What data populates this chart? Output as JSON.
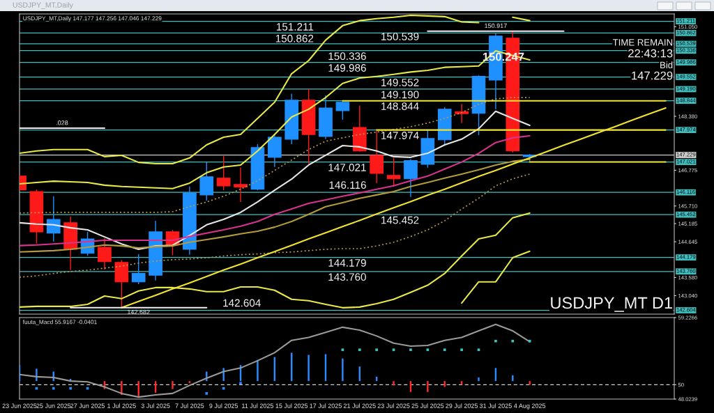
{
  "chart_data": [
    {
      "type": "candlestick",
      "title": "USDJPY_MT,Daily",
      "subtitle": "USDJPY_MT,Daily 147.177 147.256 147.046 147.229",
      "categories": [
        null,
        null,
        null,
        null,
        null,
        null,
        null,
        null,
        null,
        null,
        null,
        null,
        null,
        null,
        null,
        null,
        null,
        null,
        null,
        null,
        null,
        null,
        null,
        null,
        null,
        null,
        null,
        null,
        null,
        null,
        null,
        null,
        null,
        null,
        null,
        null,
        null,
        null,
        null
      ],
      "ohlc": [
        [
          146.6,
          146.6,
          146.19,
          146.19
        ],
        [
          146.14,
          146.2,
          144.59,
          144.94
        ],
        [
          144.9,
          146.0,
          144.65,
          145.31
        ],
        [
          145.21,
          145.4,
          143.8,
          144.42
        ],
        [
          144.3,
          144.94,
          144.23,
          144.73
        ],
        [
          144.48,
          144.75,
          143.82,
          144.05
        ],
        [
          144.03,
          144.1,
          142.682,
          143.45
        ],
        [
          143.45,
          144.28,
          143.38,
          143.7
        ],
        [
          143.65,
          145.27,
          143.49,
          144.94
        ],
        [
          144.94,
          145.0,
          144.24,
          144.55
        ],
        [
          144.42,
          146.29,
          144.26,
          146.1
        ],
        [
          146.04,
          147.01,
          145.87,
          146.58
        ],
        [
          146.54,
          147.2,
          146.18,
          146.31
        ],
        [
          146.35,
          146.85,
          145.83,
          146.27
        ],
        [
          146.21,
          147.55,
          146.18,
          147.45
        ],
        [
          147.16,
          147.84,
          146.87,
          147.76
        ],
        [
          147.7,
          149.05,
          147.55,
          148.86
        ],
        [
          148.86,
          149.19,
          146.97,
          147.84
        ],
        [
          147.78,
          149.01,
          147.7,
          148.63
        ],
        [
          148.55,
          148.82,
          148.28,
          148.8
        ],
        [
          148.05,
          148.7,
          147.33,
          147.35
        ],
        [
          147.22,
          147.95,
          146.39,
          146.68
        ],
        [
          146.62,
          147.14,
          146.29,
          146.52
        ],
        [
          146.52,
          147.1,
          145.98,
          147.06
        ],
        [
          146.95,
          147.97,
          146.85,
          147.72
        ],
        [
          147.68,
          148.65,
          147.53,
          148.59
        ],
        [
          148.52,
          148.75,
          148.18,
          148.46
        ],
        [
          148.47,
          149.6,
          147.82,
          149.57
        ],
        [
          149.46,
          150.87,
          148.59,
          150.77
        ],
        [
          150.71,
          150.917,
          147.3,
          147.35
        ],
        [
          147.177,
          147.256,
          147.046,
          147.229
        ],
        null,
        null,
        null,
        null,
        null,
        null,
        null,
        null
      ],
      "colors": [
        "#ff1a1a",
        "#ff1a1a",
        "#1e90ff",
        "#ff1a1a",
        "#1e90ff",
        "#ff1a1a",
        "#ff1a1a",
        "#1e90ff",
        "#1e90ff",
        "#ff1a1a",
        "#1e90ff",
        "#1e90ff",
        "#ff1a1a",
        "#ff1a1a",
        "#1e90ff",
        "#1e90ff",
        "#1e90ff",
        "#ff1a1a",
        "#1e90ff",
        "#1e90ff",
        "#ff1a1a",
        "#ff1a1a",
        "#ff1a1a",
        "#1e90ff",
        "#1e90ff",
        "#1e90ff",
        "#ff1a1a",
        "#1e90ff",
        "#1e90ff",
        "#ff1a1a",
        "#1e90ff",
        null,
        null,
        null,
        null,
        null,
        null,
        null,
        null
      ],
      "series": [
        {
          "type": "line",
          "color": "#e6e6e6",
          "values": [
            145.21,
            145.17,
            145.15,
            145.06,
            145.0,
            144.79,
            144.58,
            144.42,
            144.52,
            144.54,
            144.83,
            145.15,
            145.31,
            145.52,
            145.83,
            146.18,
            146.51,
            146.93,
            147.22,
            147.51,
            147.47,
            147.35,
            147.18,
            147.16,
            147.28,
            147.53,
            147.7,
            148.01,
            148.53,
            148.32,
            148.11,
            null,
            null,
            null,
            null,
            null,
            null,
            null,
            null
          ]
        },
        {
          "type": "line",
          "color": "#d9338f",
          "values": [
            144.53,
            144.55,
            144.58,
            144.61,
            144.65,
            144.69,
            144.69,
            144.69,
            144.69,
            144.69,
            144.8,
            144.9,
            145.0,
            145.11,
            145.25,
            145.46,
            145.62,
            145.79,
            145.89,
            146.0,
            146.1,
            146.21,
            146.31,
            146.46,
            146.6,
            146.81,
            147.02,
            147.28,
            147.6,
            147.74,
            147.8,
            null,
            null,
            null,
            null,
            null,
            null,
            null,
            null
          ]
        },
        {
          "type": "line",
          "color": "#b39b3c",
          "values": [
            144.34,
            144.36,
            144.38,
            144.42,
            144.48,
            144.55,
            144.52,
            144.46,
            144.5,
            144.52,
            144.63,
            144.71,
            144.79,
            144.88,
            144.96,
            145.08,
            145.25,
            145.46,
            145.69,
            145.81,
            145.94,
            146.04,
            146.14,
            146.29,
            146.41,
            146.54,
            146.66,
            146.79,
            146.93,
            147.04,
            147.1,
            null,
            null,
            null,
            null,
            null,
            null,
            null,
            null
          ]
        },
        {
          "type": "line",
          "color": "#b89a50",
          "line_style": "dotted",
          "values": [
            145.5,
            145.51,
            145.52,
            145.52,
            145.52,
            145.52,
            145.52,
            145.52,
            145.52,
            145.54,
            145.69,
            145.83,
            146.0,
            146.21,
            146.46,
            146.77,
            147.08,
            147.39,
            147.64,
            147.74,
            147.84,
            147.91,
            147.99,
            148.07,
            148.18,
            148.32,
            148.49,
            148.74,
            148.9,
            148.94,
            148.94,
            null,
            null,
            null,
            null,
            null,
            null,
            null,
            null
          ]
        },
        {
          "type": "line",
          "color": "#b89a50",
          "line_style": "dotted",
          "values": [
            143.59,
            143.63,
            143.7,
            143.76,
            143.8,
            143.86,
            143.92,
            144.01,
            144.07,
            144.11,
            144.13,
            144.17,
            144.22,
            144.26,
            144.28,
            144.32,
            144.34,
            144.38,
            144.42,
            144.44,
            144.44,
            144.52,
            144.63,
            144.8,
            145.0,
            145.27,
            145.62,
            145.94,
            146.31,
            146.52,
            146.66,
            null,
            null,
            null,
            null,
            null,
            null,
            null,
            null
          ]
        },
        {
          "type": "line",
          "color": "#e8e84a",
          "values": [
            147.28,
            147.35,
            147.39,
            147.39,
            147.39,
            147.18,
            147.22,
            147.01,
            146.97,
            146.97,
            147.14,
            147.53,
            147.76,
            147.84,
            148.32,
            148.8,
            149.65,
            150.04,
            150.65,
            151.08,
            151.23,
            151.29,
            151.33,
            151.39,
            151.37,
            151.35,
            151.19,
            151.17,
            null,
            151.33,
            151.23,
            null,
            null,
            null,
            null,
            null,
            null,
            null,
            null
          ]
        },
        {
          "type": "line",
          "color": "#e8e84a",
          "values": [
            146.37,
            146.41,
            146.45,
            146.43,
            146.41,
            146.33,
            146.29,
            146.27,
            146.25,
            146.23,
            146.39,
            146.7,
            146.87,
            146.93,
            147.35,
            147.84,
            148.36,
            148.59,
            148.94,
            149.36,
            149.52,
            149.57,
            149.63,
            149.7,
            149.75,
            149.84,
            149.86,
            149.88,
            150.33,
            150.19,
            150.06,
            null,
            null,
            null,
            null,
            null,
            null,
            null,
            null
          ]
        },
        {
          "type": "line",
          "color": "#e8e84a",
          "values": [
            142.7,
            142.72,
            142.72,
            142.72,
            142.78,
            143.03,
            142.95,
            143.18,
            143.28,
            143.28,
            143.24,
            143.16,
            143.16,
            143.3,
            143.3,
            143.2,
            142.93,
            142.89,
            142.78,
            142.68,
            142.7,
            142.8,
            142.93,
            143.14,
            143.35,
            143.7,
            144.22,
            144.73,
            144.84,
            145.36,
            145.5,
            null,
            null,
            null,
            null,
            null,
            null,
            null,
            null
          ]
        },
        {
          "type": "line",
          "color": "#e8e84a",
          "values": [
            null,
            null,
            null,
            null,
            null,
            null,
            null,
            null,
            null,
            null,
            null,
            null,
            null,
            null,
            null,
            null,
            null,
            null,
            null,
            null,
            null,
            null,
            null,
            null,
            null,
            null,
            142.82,
            143.45,
            143.45,
            144.17,
            144.36,
            null,
            null,
            null,
            null,
            null,
            null,
            null,
            null
          ]
        },
        {
          "type": "line",
          "color": "#f2e230",
          "values": [
            null,
            null,
            null,
            null,
            null,
            null,
            142.682,
            142.87,
            143.05,
            143.24,
            143.42,
            143.61,
            143.8,
            143.98,
            144.17,
            144.35,
            144.54,
            144.73,
            144.91,
            145.1,
            145.28,
            145.47,
            145.66,
            145.84,
            146.03,
            146.21,
            146.4,
            146.59,
            146.77,
            146.96,
            147.14,
            147.33,
            147.52,
            147.7,
            147.89,
            148.07,
            148.26,
            148.45,
            148.63
          ]
        },
        {
          "type": "line",
          "color": "#f2e230",
          "values": [
            null,
            null,
            null,
            null,
            null,
            null,
            null,
            null,
            null,
            null,
            null,
            null,
            null,
            null,
            null,
            null,
            null,
            null,
            null,
            148.844,
            148.844,
            148.844,
            148.844,
            148.844,
            148.844,
            148.844,
            148.844,
            148.844,
            148.844,
            148.844,
            148.844,
            148.844,
            148.844,
            148.844,
            148.844,
            148.844,
            148.844,
            148.844,
            148.844
          ]
        },
        {
          "type": "line",
          "color": "#f2e230",
          "values": [
            null,
            null,
            null,
            null,
            null,
            null,
            null,
            null,
            null,
            null,
            null,
            null,
            null,
            null,
            null,
            null,
            null,
            null,
            null,
            null,
            null,
            147.974,
            147.974,
            147.974,
            147.974,
            147.974,
            147.974,
            147.974,
            147.974,
            147.974,
            147.974,
            147.974,
            147.974,
            147.974,
            147.974,
            147.974,
            147.974,
            147.974,
            147.974
          ]
        },
        {
          "type": "line",
          "color": "#f2e230",
          "values": [
            null,
            null,
            null,
            null,
            null,
            null,
            null,
            null,
            null,
            null,
            null,
            null,
            null,
            null,
            null,
            null,
            null,
            null,
            null,
            null,
            null,
            null,
            null,
            null,
            null,
            null,
            null,
            null,
            null,
            null,
            147.021,
            147.021,
            147.021,
            147.021,
            147.021,
            147.021,
            147.021,
            147.021,
            147.021
          ]
        },
        {
          "type": "line",
          "name": "150.917",
          "color": "#f0f0f0",
          "values": [
            null,
            null,
            null,
            null,
            null,
            null,
            null,
            null,
            null,
            null,
            null,
            null,
            null,
            null,
            null,
            null,
            null,
            null,
            null,
            null,
            null,
            null,
            null,
            null,
            150.917,
            150.917,
            150.917,
            150.917,
            150.917,
            150.917,
            150.917,
            150.917,
            150.917,
            null,
            null,
            null,
            null,
            null,
            null
          ]
        },
        {
          "type": "line",
          "name": "142.682",
          "color": "#f0f0f0",
          "values": [
            null,
            null,
            null,
            142.682,
            142.682,
            142.682,
            142.682,
            142.682,
            142.682,
            142.682,
            142.682,
            142.682,
            null,
            null,
            null,
            null,
            null,
            null,
            null,
            null,
            null,
            null,
            null,
            null,
            null,
            null,
            null,
            null,
            null,
            null,
            null,
            null,
            null,
            null,
            null,
            null,
            null,
            null,
            null
          ]
        },
        {
          "type": "line",
          "name": ".028",
          "color": "#f0f0f0",
          "values": [
            148.028,
            148.028,
            148.028,
            148.028,
            148.028,
            148.028,
            null,
            null,
            null,
            null,
            null,
            null,
            null,
            null,
            null,
            null,
            null,
            null,
            null,
            null,
            null,
            null,
            null,
            null,
            null,
            null,
            null,
            null,
            null,
            null,
            null,
            null,
            null,
            null,
            null,
            null,
            null,
            null,
            null
          ]
        }
      ],
      "ylim": [
        142.49,
        151.43
      ],
      "yticks": [
        {
          "value": 151.05,
          "label": "151.050"
        },
        {
          "value": 148.38,
          "label": "148.380"
        },
        146.775,
        {
          "value": 145.71,
          "label": "145.710"
        },
        145.185,
        144.645,
        {
          "value": 143.58,
          "label": "143.580"
        },
        {
          "value": 143.04,
          "label": "143.040"
        }
      ],
      "tick_labels": "y",
      "ref_lines": [
        {
          "axis": "y",
          "value": 151.211,
          "label": "151.211",
          "color": "#3fbfbf"
        },
        {
          "axis": "y",
          "value": 150.862,
          "label": "150.862",
          "color": "#3fbfbf"
        },
        {
          "axis": "y",
          "value": 150.539,
          "label": "150.539",
          "color": "#3fbfbf"
        },
        {
          "axis": "y",
          "value": 150.336,
          "label": "150.336",
          "color": "#3fbfbf"
        },
        {
          "axis": "y",
          "value": 149.986,
          "label": "149.986",
          "color": "#3fbfbf"
        },
        {
          "axis": "y",
          "value": 149.552,
          "label": "149.552",
          "color": "#3fbfbf"
        },
        {
          "axis": "y",
          "value": 149.19,
          "label": "149.190",
          "color": "#3fbfbf"
        },
        {
          "axis": "y",
          "value": 148.844,
          "label": "148.844",
          "color": "#3fbfbf"
        },
        {
          "axis": "y",
          "value": 147.974,
          "label": "147.974",
          "color": "#3fbfbf"
        },
        {
          "axis": "y",
          "value": 147.229,
          "label": "147.229",
          "color": "#cfcfcf"
        },
        {
          "axis": "y",
          "value": 147.021,
          "label": "147.021",
          "color": "#3fbfbf"
        },
        {
          "axis": "y",
          "value": 146.116,
          "label": "146.116",
          "color": "#3fbfbf"
        },
        {
          "axis": "y",
          "value": 145.452,
          "label": "145.452",
          "color": "#3fbfbf"
        },
        {
          "axis": "y",
          "value": 144.179,
          "label": "144.179",
          "color": "#3fbfbf"
        },
        {
          "axis": "y",
          "value": 143.76,
          "label": "143.760",
          "color": "#3fbfbf"
        },
        {
          "axis": "y",
          "value": 142.604,
          "label": "142.604",
          "color": "#3fbfbf"
        }
      ],
      "annotations": [
        "TIME REMAIN",
        "22:43:13",
        "Bid",
        "147.229",
        "150.247",
        "USDJPY_MT D1",
        {
          "text": "151.211",
          "y": 151.211
        },
        {
          "text": "150.862",
          "y": 150.862
        },
        {
          "text": "150.539",
          "y": 150.539
        },
        {
          "text": "150.336",
          "y": 150.336
        },
        {
          "text": "149.986",
          "y": 149.986
        },
        {
          "text": "149.552",
          "y": 149.552
        },
        {
          "text": "149.190",
          "y": 149.19
        },
        {
          "text": "148.844",
          "y": 148.844
        },
        {
          "text": "147.974",
          "y": 147.974
        },
        {
          "text": "147.021",
          "y": 147.021
        },
        {
          "text": "146.116",
          "y": 146.116
        },
        {
          "text": "145.452",
          "y": 145.452
        },
        {
          "text": "144.179",
          "y": 144.179
        },
        {
          "text": "143.760",
          "y": 143.76
        },
        {
          "text": "142.604",
          "y": 142.604
        }
      ]
    },
    {
      "type": "bar",
      "title": "fuuta_Macd 55.9167 -0.0401",
      "categories": [
        "23 Jun 2025",
        null,
        "25 Jun 2025",
        null,
        "27 Jun 2025",
        null,
        "1 Jul 2025",
        null,
        "3 Jul 2025",
        null,
        "7 Jul 2025",
        null,
        "9 Jul 2025",
        null,
        "11 Jul 2025",
        null,
        "15 Jul 2025",
        null,
        "17 Jul 2025",
        null,
        "21 Jul 2025",
        null,
        "23 Jul 2025",
        null,
        "25 Jul 2025",
        null,
        "29 Jul 2025",
        null,
        "31 Jul 2025",
        null,
        "4 Aug 2025",
        null,
        null,
        null,
        null,
        null,
        null,
        null,
        null
      ],
      "series": [
        {
          "colors": [
            "#2a8cff",
            "#2a8cff",
            "#2a8cff",
            "#2a8cff",
            null,
            "#ff2a2a",
            "#ff2a2a",
            "#ff2a2a",
            "#ff2a2a",
            "#ff2a2a",
            "#ff2a2a",
            "#2a8cff",
            "#2a8cff",
            "#2a8cff",
            "#2a8cff",
            "#2a8cff",
            "#2a8cff",
            "#2a8cff",
            "#2a8cff",
            "#2a8cff",
            "#2a8cff",
            "#2a8cff",
            "#ff2a2a",
            "#ff2a2a",
            "#ff2a2a",
            "#ff2a2a",
            "#ff2a2a",
            "#2a8cff",
            "#2a8cff",
            "#2a8cff",
            "#ff2a2a",
            null,
            null,
            null,
            null,
            null,
            null,
            null,
            null
          ],
          "base": [
            50.5,
            50.5,
            50.5,
            50.5,
            null,
            50.5,
            50.5,
            50.5,
            50.5,
            50.5,
            50.5,
            50.5,
            50.5,
            50.5,
            50.5,
            50.5,
            50.5,
            50.5,
            50.5,
            50.5,
            50.5,
            50.5,
            50.5,
            50.5,
            50.5,
            50.5,
            50.5,
            50.5,
            50.5,
            50.5,
            50.5,
            null,
            null,
            null,
            null,
            null,
            null,
            null,
            null
          ],
          "values": [
            2.2,
            1.7,
            1.3,
            0.3,
            null,
            -1.1,
            -1.9,
            -2.2,
            -1.6,
            -1.1,
            -0.3,
            1.3,
            1.8,
            2.2,
            2.9,
            3.3,
            3.9,
            3.6,
            3.7,
            3.1,
            2.0,
            0.6,
            -0.6,
            -1.5,
            -1.5,
            -0.8,
            -0.5,
            0.5,
            1.8,
            0.8,
            -0.5,
            null,
            null,
            null,
            null,
            null,
            null,
            null,
            null
          ]
        },
        {
          "type": "line",
          "color": "#9a9a9a",
          "values": [
            51.4,
            51.1,
            51.0,
            50.5,
            50.4,
            49.7,
            48.8,
            48.3,
            48.6,
            48.8,
            49.9,
            50.9,
            51.8,
            52.3,
            53.3,
            54.4,
            56.1,
            56.5,
            57.2,
            57.9,
            57.5,
            56.7,
            55.7,
            55.3,
            55.4,
            56.1,
            56.5,
            57.4,
            58.3,
            57.4,
            55.9,
            null,
            null,
            null,
            null,
            null,
            null,
            null,
            null
          ]
        },
        {
          "type": "scatter",
          "color": "#3fbfbf",
          "marker": "square",
          "values": [
            null,
            null,
            null,
            null,
            null,
            null,
            null,
            null,
            null,
            null,
            null,
            null,
            null,
            null,
            null,
            null,
            null,
            null,
            null,
            54.8,
            54.8,
            54.8,
            54.8,
            54.8,
            54.8,
            54.8,
            54.8,
            54.8,
            56.0,
            56.0,
            56.0,
            null,
            null,
            null,
            null,
            null,
            null,
            null,
            null
          ]
        },
        {
          "type": "scatter",
          "color": "#2a8cff",
          "marker": "square",
          "values": [
            null,
            49.5,
            49.5,
            49.5,
            49.5,
            null,
            null,
            null,
            null,
            null,
            null,
            48.8,
            49.5,
            50.2,
            null,
            null,
            null,
            null,
            null,
            null,
            null,
            null,
            null,
            null,
            null,
            null,
            null,
            null,
            null,
            null,
            null,
            null,
            null,
            null,
            null,
            null,
            null,
            null,
            null
          ]
        }
      ],
      "ylim": [
        48.0239,
        59.2266
      ],
      "yticks": [
        59.2266,
        50,
        48.0239
      ],
      "ref_lines": [
        {
          "axis": "y",
          "value": 50,
          "color": "#cfcfcf",
          "line_style": "dashed"
        }
      ]
    }
  ]
}
